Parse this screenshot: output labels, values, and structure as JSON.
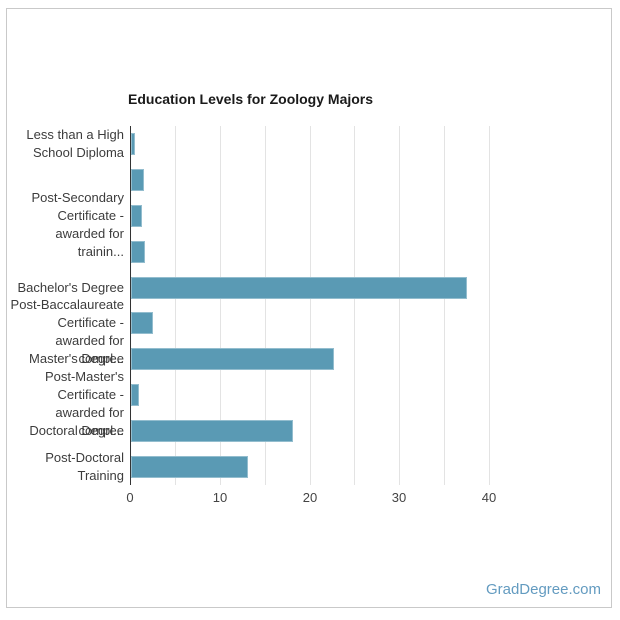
{
  "window": {
    "background": "#ffffff",
    "border_color": "#c9c9c9"
  },
  "watermark": {
    "text": "GradDegree.com",
    "color": "#639bc0"
  },
  "chart_data": {
    "type": "bar",
    "orientation": "horizontal",
    "title": "Education Levels for Zoology Majors",
    "xlabel": "",
    "ylabel": "",
    "xlim": [
      0,
      45
    ],
    "x_ticks": [
      0,
      10,
      20,
      30,
      40
    ],
    "gridline_step": 5,
    "gridline_max": 40,
    "grid": true,
    "legend": "none",
    "bar_color": "#5a9ab4",
    "gridline_color": "#e3e3e3",
    "axis_color": "#333333",
    "label_color": "#3c3c3c",
    "title_color": "#1a1a1a",
    "bars": [
      {
        "category": "Less than a High School Diploma",
        "label_lines": [
          "Less than a High",
          "School Diploma"
        ],
        "value": 0.4
      },
      {
        "category": "",
        "label_lines": [],
        "value": 1.5
      },
      {
        "category": "Post-Secondary Certificate - awarded for trainin...",
        "label_lines": [
          "Post-Secondary",
          "Certificate -",
          "awarded for trainin..."
        ],
        "value": 1.2
      },
      {
        "category": "",
        "label_lines": [],
        "value": 1.6
      },
      {
        "category": "Bachelor's Degree",
        "label_lines": [
          "Bachelor's Degree"
        ],
        "value": 37.4
      },
      {
        "category": "Post-Baccalaureate Certificate - awarded for compl...",
        "label_lines": [
          "Post-Baccalaureate",
          "Certificate -",
          "awarded for compl..."
        ],
        "value": 2.5
      },
      {
        "category": "Master's Degree",
        "label_lines": [
          "Master's Degree"
        ],
        "value": 22.6
      },
      {
        "category": "Post-Master's Certificate - awarded for compl...",
        "label_lines": [
          "Post-Master's",
          "Certificate -",
          "awarded for compl..."
        ],
        "value": 0.9
      },
      {
        "category": "Doctoral Degree",
        "label_lines": [
          "Doctoral Degree"
        ],
        "value": 18
      },
      {
        "category": "Post-Doctoral Training",
        "label_lines": [
          "Post-Doctoral",
          "Training"
        ],
        "value": 13
      }
    ]
  }
}
